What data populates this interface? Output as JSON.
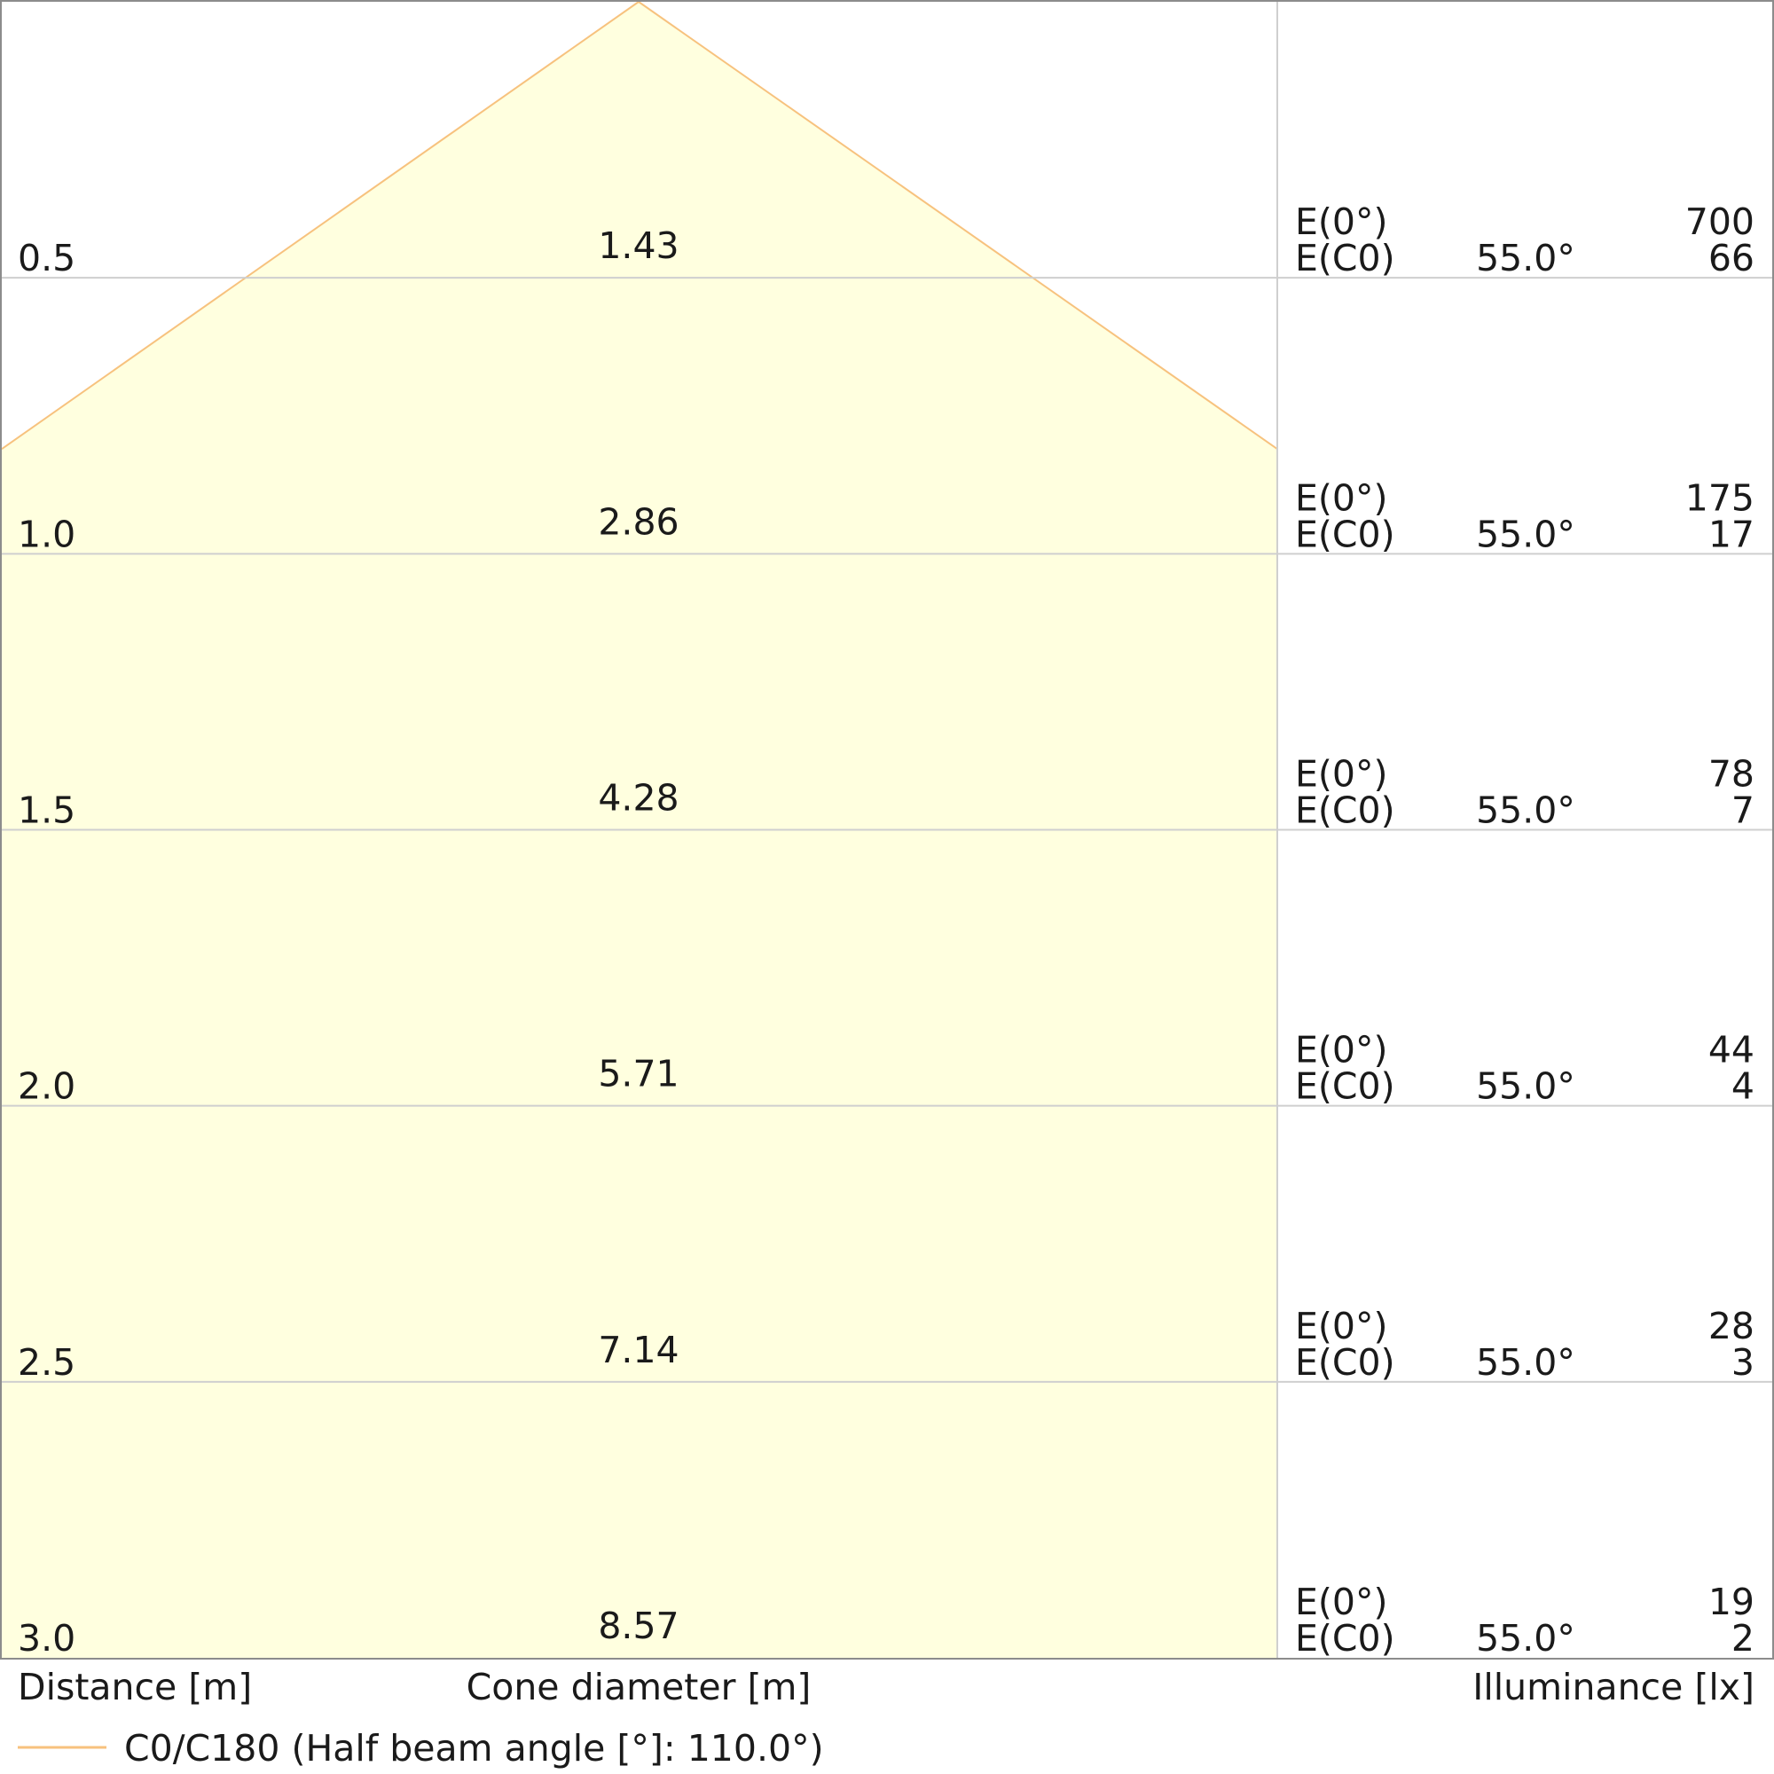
{
  "chart_data": {
    "type": "cone_diagram",
    "distance_label": "Distance [m]",
    "cone_label": "Cone diameter [m]",
    "illuminance_label": "Illuminance [lx]",
    "legend": "C0/C180 (Half beam angle [°]: 110.0°)",
    "e0_label": "E(0°)",
    "ec0_label": "E(C0)",
    "distances": [
      "0.5",
      "1.0",
      "1.5",
      "2.0",
      "2.5",
      "3.0"
    ],
    "cone_diameters": [
      "1.43",
      "2.86",
      "4.28",
      "5.71",
      "7.14",
      "8.57"
    ],
    "ec0_angles": [
      "55.0°",
      "55.0°",
      "55.0°",
      "55.0°",
      "55.0°",
      "55.0°"
    ],
    "e0_values": [
      "700",
      "175",
      "78",
      "44",
      "28",
      "19"
    ],
    "ec0_values": [
      "66",
      "17",
      "7",
      "4",
      "3",
      "2"
    ],
    "half_beam_angle_deg": 110.0,
    "max_distance": 3.0,
    "colors": {
      "cone_fill": "#ffffdf",
      "cone_edge": "#f7c27e",
      "legend_line": "#f7c27e",
      "grid": "#cfcfcf"
    }
  }
}
